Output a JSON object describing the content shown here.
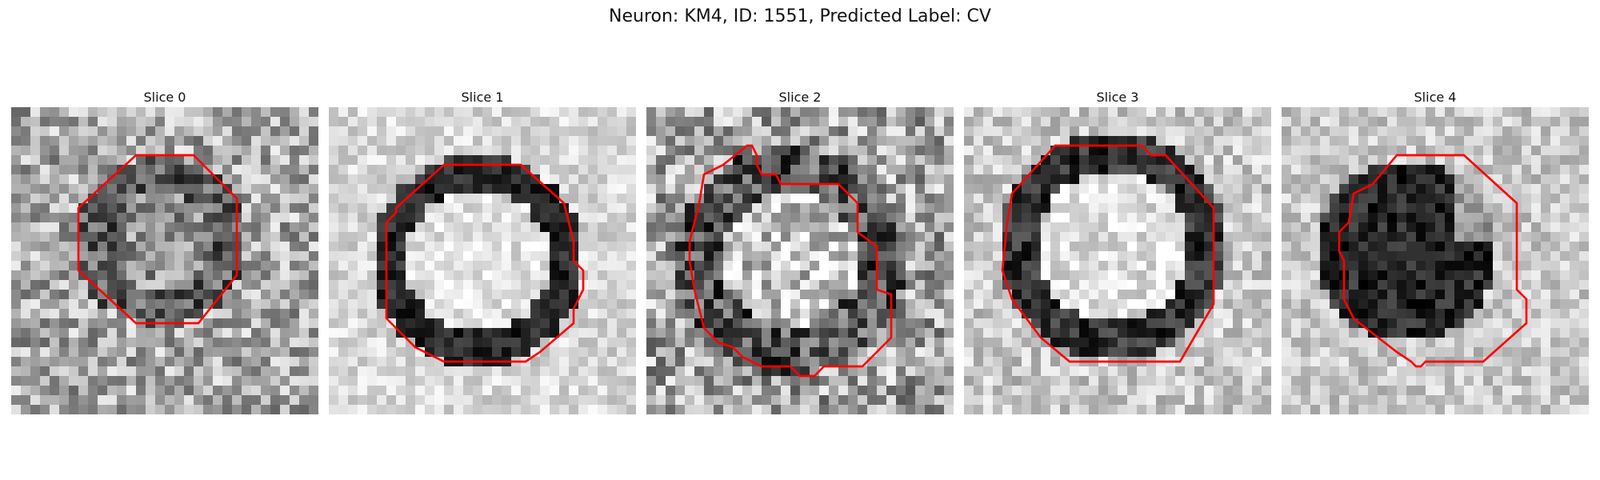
{
  "figure": {
    "title": "Neuron: KM4, ID: 1551, Predicted Label: CV"
  },
  "panels": [
    {
      "title": "Slice 0"
    },
    {
      "title": "Slice 1"
    },
    {
      "title": "Slice 2"
    },
    {
      "title": "Slice 3"
    },
    {
      "title": "Slice 4"
    }
  ],
  "colors": {
    "contour": "#ff0000",
    "background": "#ffffff"
  }
}
